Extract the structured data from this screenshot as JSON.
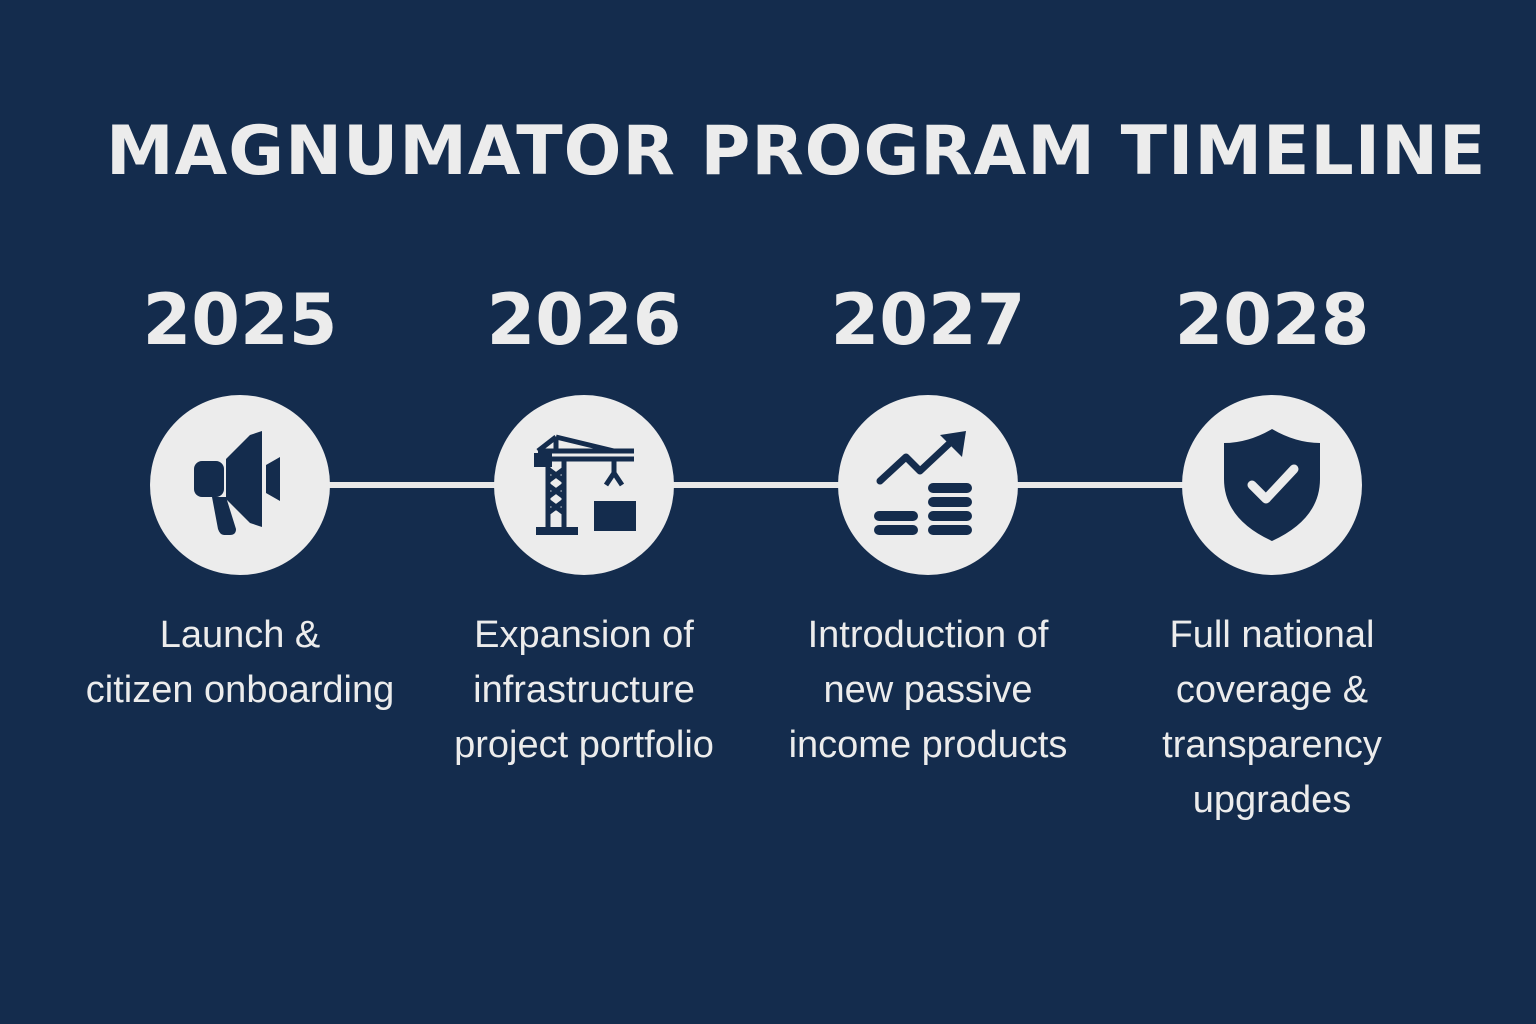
{
  "title": "MAGNUMATOR PROGRAM TIMELINE",
  "colors": {
    "background": "#142c4d",
    "foreground": "#ececec",
    "icon": "#142c4d"
  },
  "milestones": [
    {
      "year": "2025",
      "icon": "megaphone-icon",
      "description_lines": [
        "Launch &",
        "citizen onboarding"
      ]
    },
    {
      "year": "2026",
      "icon": "crane-icon",
      "description_lines": [
        "Expansion of",
        "infrastructure",
        "project portfolio"
      ]
    },
    {
      "year": "2027",
      "icon": "growth-coins-icon",
      "description_lines": [
        "Introduction of",
        "new passive",
        "income products"
      ]
    },
    {
      "year": "2028",
      "icon": "shield-check-icon",
      "description_lines": [
        "Full national",
        "coverage &",
        "transparency",
        "upgrades"
      ]
    }
  ]
}
